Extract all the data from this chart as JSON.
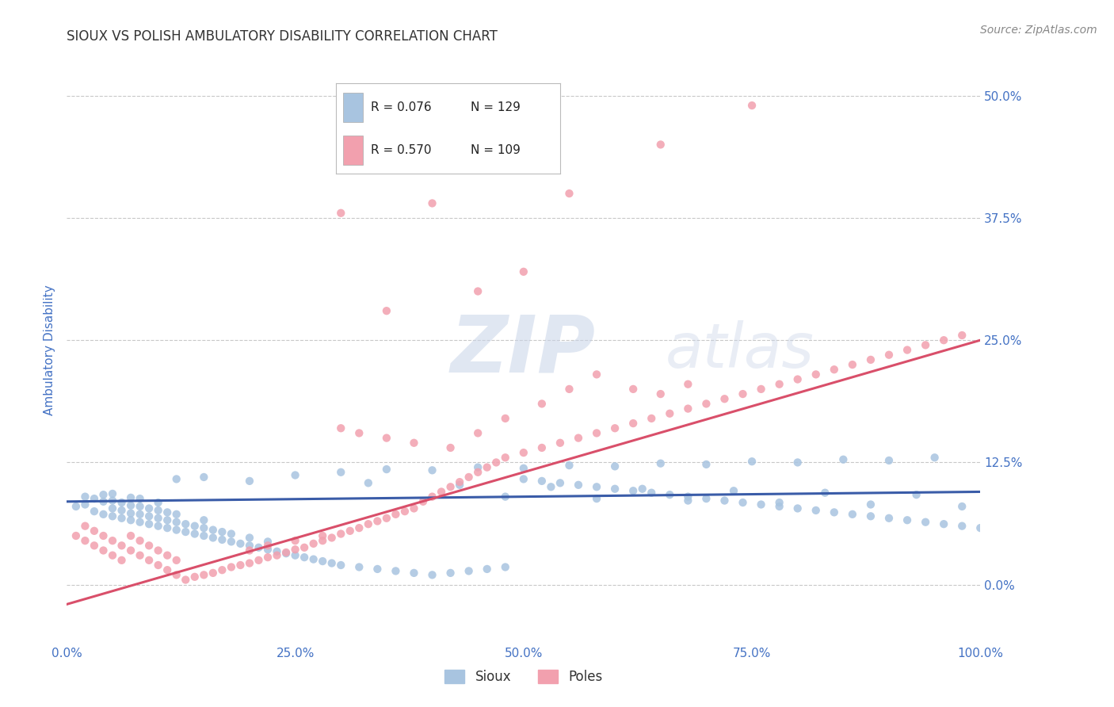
{
  "title": "SIOUX VS POLISH AMBULATORY DISABILITY CORRELATION CHART",
  "source": "Source: ZipAtlas.com",
  "ylabel": "Ambulatory Disability",
  "watermark_zip": "ZIP",
  "watermark_atlas": "atlas",
  "sioux_R": 0.076,
  "sioux_N": 129,
  "poles_R": 0.57,
  "poles_N": 109,
  "sioux_color": "#a8c4e0",
  "poles_color": "#f2a0ae",
  "sioux_line_color": "#3a5ca8",
  "poles_line_color": "#d94f6a",
  "title_color": "#333333",
  "axis_label_color": "#4472c4",
  "tick_color": "#4472c4",
  "source_color": "#888888",
  "background_color": "#ffffff",
  "grid_color": "#c8c8c8",
  "xlim": [
    0.0,
    1.0
  ],
  "ylim": [
    -0.06,
    0.54
  ],
  "yticks": [
    0.0,
    0.125,
    0.25,
    0.375,
    0.5
  ],
  "ytick_labels": [
    "0.0%",
    "12.5%",
    "25.0%",
    "37.5%",
    "50.0%"
  ],
  "xticks": [
    0.0,
    0.25,
    0.5,
    0.75,
    1.0
  ],
  "xtick_labels": [
    "0.0%",
    "25.0%",
    "50.0%",
    "75.0%",
    "100.0%"
  ],
  "sioux_line_start_y": 0.085,
  "sioux_line_end_y": 0.095,
  "poles_line_start_y": -0.02,
  "poles_line_end_y": 0.25,
  "sioux_x": [
    0.01,
    0.02,
    0.02,
    0.03,
    0.03,
    0.04,
    0.04,
    0.04,
    0.05,
    0.05,
    0.05,
    0.05,
    0.06,
    0.06,
    0.06,
    0.07,
    0.07,
    0.07,
    0.07,
    0.08,
    0.08,
    0.08,
    0.08,
    0.09,
    0.09,
    0.09,
    0.1,
    0.1,
    0.1,
    0.1,
    0.11,
    0.11,
    0.11,
    0.12,
    0.12,
    0.12,
    0.13,
    0.13,
    0.14,
    0.14,
    0.15,
    0.15,
    0.15,
    0.16,
    0.16,
    0.17,
    0.17,
    0.18,
    0.18,
    0.19,
    0.2,
    0.2,
    0.21,
    0.22,
    0.22,
    0.23,
    0.24,
    0.25,
    0.26,
    0.27,
    0.28,
    0.29,
    0.3,
    0.32,
    0.34,
    0.36,
    0.38,
    0.4,
    0.42,
    0.44,
    0.46,
    0.48,
    0.5,
    0.52,
    0.54,
    0.56,
    0.58,
    0.6,
    0.62,
    0.64,
    0.66,
    0.68,
    0.7,
    0.72,
    0.74,
    0.76,
    0.78,
    0.8,
    0.82,
    0.84,
    0.86,
    0.88,
    0.9,
    0.92,
    0.94,
    0.96,
    0.98,
    1.0,
    0.35,
    0.45,
    0.55,
    0.65,
    0.75,
    0.85,
    0.95,
    0.3,
    0.4,
    0.5,
    0.6,
    0.7,
    0.8,
    0.9,
    0.25,
    0.15,
    0.12,
    0.2,
    0.33,
    0.43,
    0.53,
    0.63,
    0.73,
    0.83,
    0.93,
    0.48,
    0.58,
    0.68,
    0.78,
    0.88,
    0.98
  ],
  "sioux_y": [
    0.08,
    0.082,
    0.09,
    0.075,
    0.088,
    0.072,
    0.085,
    0.092,
    0.07,
    0.078,
    0.086,
    0.093,
    0.068,
    0.076,
    0.084,
    0.066,
    0.073,
    0.081,
    0.089,
    0.064,
    0.072,
    0.08,
    0.088,
    0.062,
    0.07,
    0.078,
    0.06,
    0.068,
    0.076,
    0.084,
    0.058,
    0.066,
    0.074,
    0.056,
    0.064,
    0.072,
    0.054,
    0.062,
    0.052,
    0.06,
    0.05,
    0.058,
    0.066,
    0.048,
    0.056,
    0.046,
    0.054,
    0.044,
    0.052,
    0.042,
    0.04,
    0.048,
    0.038,
    0.036,
    0.044,
    0.034,
    0.032,
    0.03,
    0.028,
    0.026,
    0.024,
    0.022,
    0.02,
    0.018,
    0.016,
    0.014,
    0.012,
    0.01,
    0.012,
    0.014,
    0.016,
    0.018,
    0.108,
    0.106,
    0.104,
    0.102,
    0.1,
    0.098,
    0.096,
    0.094,
    0.092,
    0.09,
    0.088,
    0.086,
    0.084,
    0.082,
    0.08,
    0.078,
    0.076,
    0.074,
    0.072,
    0.07,
    0.068,
    0.066,
    0.064,
    0.062,
    0.06,
    0.058,
    0.118,
    0.12,
    0.122,
    0.124,
    0.126,
    0.128,
    0.13,
    0.115,
    0.117,
    0.119,
    0.121,
    0.123,
    0.125,
    0.127,
    0.112,
    0.11,
    0.108,
    0.106,
    0.104,
    0.102,
    0.1,
    0.098,
    0.096,
    0.094,
    0.092,
    0.09,
    0.088,
    0.086,
    0.084,
    0.082,
    0.08
  ],
  "poles_x": [
    0.01,
    0.02,
    0.02,
    0.03,
    0.03,
    0.04,
    0.04,
    0.05,
    0.05,
    0.06,
    0.06,
    0.07,
    0.07,
    0.08,
    0.08,
    0.09,
    0.09,
    0.1,
    0.1,
    0.11,
    0.11,
    0.12,
    0.12,
    0.13,
    0.14,
    0.15,
    0.16,
    0.17,
    0.18,
    0.19,
    0.2,
    0.21,
    0.22,
    0.23,
    0.24,
    0.25,
    0.26,
    0.27,
    0.28,
    0.29,
    0.3,
    0.31,
    0.32,
    0.33,
    0.34,
    0.35,
    0.36,
    0.37,
    0.38,
    0.39,
    0.4,
    0.41,
    0.42,
    0.43,
    0.44,
    0.45,
    0.46,
    0.47,
    0.48,
    0.5,
    0.52,
    0.54,
    0.56,
    0.58,
    0.6,
    0.62,
    0.64,
    0.66,
    0.68,
    0.7,
    0.72,
    0.74,
    0.76,
    0.78,
    0.8,
    0.82,
    0.84,
    0.86,
    0.88,
    0.9,
    0.92,
    0.94,
    0.96,
    0.98,
    0.3,
    0.32,
    0.35,
    0.38,
    0.42,
    0.45,
    0.48,
    0.52,
    0.55,
    0.58,
    0.62,
    0.65,
    0.68,
    0.55,
    0.65,
    0.75,
    0.2,
    0.22,
    0.25,
    0.28,
    0.35,
    0.45,
    0.5,
    0.3,
    0.4
  ],
  "poles_y": [
    0.05,
    0.045,
    0.06,
    0.04,
    0.055,
    0.035,
    0.05,
    0.03,
    0.045,
    0.025,
    0.04,
    0.035,
    0.05,
    0.03,
    0.045,
    0.025,
    0.04,
    0.02,
    0.035,
    0.015,
    0.03,
    0.01,
    0.025,
    0.005,
    0.008,
    0.01,
    0.012,
    0.015,
    0.018,
    0.02,
    0.022,
    0.025,
    0.028,
    0.03,
    0.033,
    0.036,
    0.038,
    0.042,
    0.045,
    0.048,
    0.052,
    0.055,
    0.058,
    0.062,
    0.065,
    0.068,
    0.072,
    0.075,
    0.078,
    0.085,
    0.09,
    0.095,
    0.1,
    0.105,
    0.11,
    0.115,
    0.12,
    0.125,
    0.13,
    0.135,
    0.14,
    0.145,
    0.15,
    0.155,
    0.16,
    0.165,
    0.17,
    0.175,
    0.18,
    0.185,
    0.19,
    0.195,
    0.2,
    0.205,
    0.21,
    0.215,
    0.22,
    0.225,
    0.23,
    0.235,
    0.24,
    0.245,
    0.25,
    0.255,
    0.16,
    0.155,
    0.15,
    0.145,
    0.14,
    0.155,
    0.17,
    0.185,
    0.2,
    0.215,
    0.2,
    0.195,
    0.205,
    0.4,
    0.45,
    0.49,
    0.035,
    0.04,
    0.045,
    0.05,
    0.28,
    0.3,
    0.32,
    0.38,
    0.39
  ]
}
